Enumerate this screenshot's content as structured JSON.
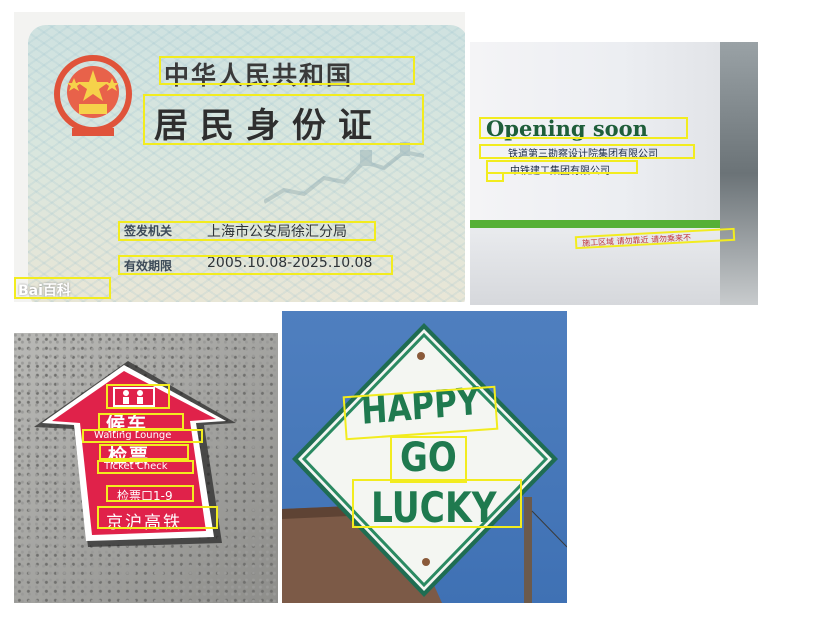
{
  "id_card": {
    "country_title": "中华人民共和国",
    "card_title": "居民身份证",
    "authority_label": "签发机关",
    "authority_value": "上海市公安局徐汇分局",
    "validity_label": "有效期限",
    "validity_value": "2005.10.08-2025.10.08",
    "watermark": "Bai百科"
  },
  "construction_sign": {
    "headline": "Opening soon",
    "company_1": "铁道第三勘察设计院集团有限公司",
    "company_2": "中铁建工集团有限公司",
    "warning": "施工区域 请勿靠近 请勿乘来不"
  },
  "floor_arrow": {
    "line_1": "候车",
    "line_1_en": "Waiting Lounge",
    "line_2": "检票",
    "line_2_en": "Ticket Check",
    "gates": "检票口1-9",
    "route": "京沪高铁"
  },
  "road_sign": {
    "line_1": "HAPPY",
    "line_2": "GO",
    "line_3": "LUCKY"
  },
  "colors": {
    "annotation_box": "#f2ec1f",
    "arrow_red": "#e0224a",
    "sign_green": "#1f7a4f",
    "sky_blue": "#3f71b4"
  }
}
